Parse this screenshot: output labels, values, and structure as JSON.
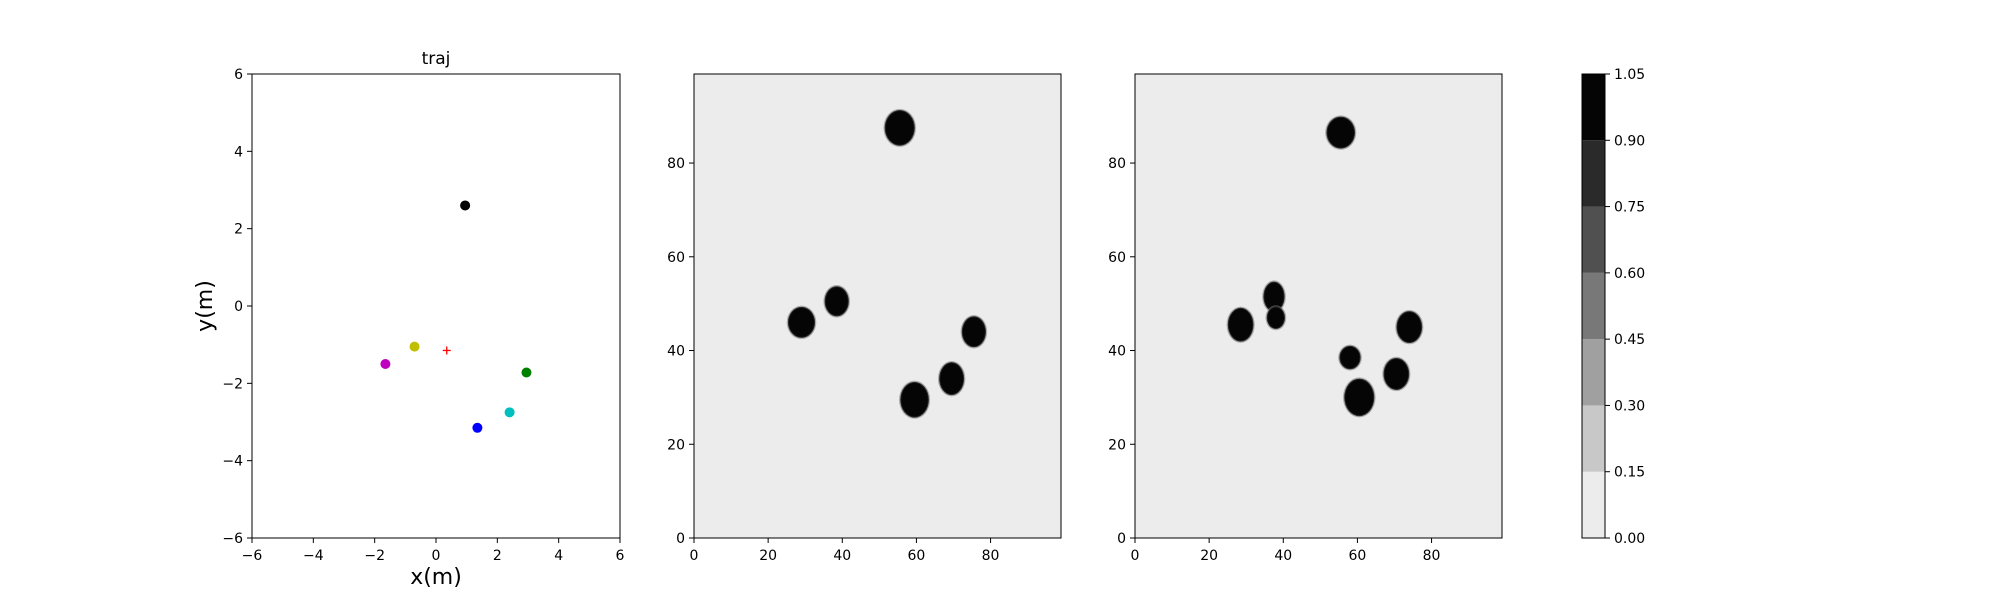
{
  "chart_data": [
    {
      "type": "scatter",
      "title": "traj",
      "xlabel": "x(m)",
      "ylabel": "y(m)",
      "xlim": [
        -6,
        6
      ],
      "ylim": [
        -6,
        6
      ],
      "xticks": [
        -6,
        -4,
        -2,
        0,
        2,
        4,
        6
      ],
      "yticks": [
        -6,
        -4,
        -2,
        0,
        2,
        4,
        6
      ],
      "grid": false,
      "points": [
        {
          "x": 0.95,
          "y": 2.6,
          "color": "#000000",
          "marker": "circle"
        },
        {
          "x": -0.7,
          "y": -1.05,
          "color": "#bfbf00",
          "marker": "circle"
        },
        {
          "x": -1.65,
          "y": -1.5,
          "color": "#bf00bf",
          "marker": "circle"
        },
        {
          "x": 2.95,
          "y": -1.72,
          "color": "#008000",
          "marker": "circle"
        },
        {
          "x": 2.4,
          "y": -2.75,
          "color": "#00bfbf",
          "marker": "circle"
        },
        {
          "x": 1.35,
          "y": -3.15,
          "color": "#0000ff",
          "marker": "circle"
        },
        {
          "x": 0.35,
          "y": -1.15,
          "color": "#ff0000",
          "marker": "plus"
        }
      ]
    },
    {
      "type": "heatmap",
      "title": "",
      "xlim": [
        0,
        99
      ],
      "ylim": [
        0,
        99
      ],
      "xticks": [
        0,
        20,
        40,
        60,
        80
      ],
      "yticks": [
        0,
        20,
        40,
        60,
        80
      ],
      "background_value": 0.05,
      "blobs": [
        {
          "cx": 55.5,
          "cy": 87.5,
          "rx": 3.8,
          "ry": 3.6,
          "value": 1.0
        },
        {
          "cx": 29.0,
          "cy": 46.0,
          "rx": 3.4,
          "ry": 3.1,
          "value": 1.0
        },
        {
          "cx": 38.5,
          "cy": 50.5,
          "rx": 3.0,
          "ry": 3.0,
          "value": 1.0
        },
        {
          "cx": 75.5,
          "cy": 44.0,
          "rx": 3.0,
          "ry": 3.1,
          "value": 1.0
        },
        {
          "cx": 69.5,
          "cy": 34.0,
          "rx": 3.1,
          "ry": 3.3,
          "value": 1.0
        },
        {
          "cx": 59.5,
          "cy": 29.5,
          "rx": 3.6,
          "ry": 3.6,
          "value": 1.0
        }
      ]
    },
    {
      "type": "heatmap",
      "title": "",
      "xlim": [
        0,
        99
      ],
      "ylim": [
        0,
        99
      ],
      "xticks": [
        0,
        20,
        40,
        60,
        80
      ],
      "yticks": [
        0,
        20,
        40,
        60,
        80
      ],
      "background_value": 0.05,
      "blobs": [
        {
          "cx": 55.5,
          "cy": 86.5,
          "rx": 3.6,
          "ry": 3.2,
          "value": 1.0
        },
        {
          "cx": 28.5,
          "cy": 45.5,
          "rx": 3.2,
          "ry": 3.4,
          "value": 1.0
        },
        {
          "cx": 37.5,
          "cy": 51.5,
          "rx": 2.6,
          "ry": 3.0,
          "value": 1.0
        },
        {
          "cx": 38.0,
          "cy": 47.0,
          "rx": 2.2,
          "ry": 2.2,
          "value": 1.0
        },
        {
          "cx": 74.0,
          "cy": 45.0,
          "rx": 3.2,
          "ry": 3.2,
          "value": 1.0
        },
        {
          "cx": 58.0,
          "cy": 38.5,
          "rx": 2.6,
          "ry": 2.3,
          "value": 1.0
        },
        {
          "cx": 70.5,
          "cy": 35.0,
          "rx": 3.2,
          "ry": 3.2,
          "value": 1.0
        },
        {
          "cx": 60.5,
          "cy": 30.0,
          "rx": 3.8,
          "ry": 3.8,
          "value": 1.0
        }
      ]
    },
    {
      "type": "colorbar",
      "levels": [
        0.0,
        0.15,
        0.3,
        0.45,
        0.6,
        0.75,
        0.9,
        1.05
      ],
      "tick_labels": [
        "0.00",
        "0.15",
        "0.30",
        "0.45",
        "0.60",
        "0.75",
        "0.90",
        "1.05"
      ],
      "colors": [
        "#ececec",
        "#c8c8c8",
        "#a0a0a0",
        "#787878",
        "#505050",
        "#2a2a2a",
        "#050505"
      ]
    }
  ]
}
